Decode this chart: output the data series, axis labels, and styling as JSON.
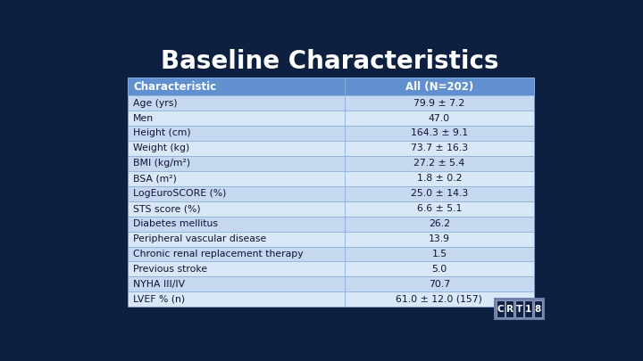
{
  "title": "Baseline Characteristics",
  "title_color": "#FFFFFF",
  "title_fontsize": 20,
  "background_color": "#0d2040",
  "table_bg_even": "#c5d8ef",
  "table_bg_odd": "#d8e8f7",
  "table_bg_header": "#6090d0",
  "table_border_color": "#8ab0e0",
  "header_row": [
    "Characteristic",
    "All (N=202)"
  ],
  "rows": [
    [
      "Age (yrs)",
      "79.9 ± 7.2"
    ],
    [
      "Men",
      "47.0"
    ],
    [
      "Height (cm)",
      "164.3 ± 9.1"
    ],
    [
      "Weight (kg)",
      "73.7 ± 16.3"
    ],
    [
      "BMI (kg/m²)",
      "27.2 ± 5.4"
    ],
    [
      "BSA (m²)",
      "1.8 ± 0.2"
    ],
    [
      "LogEuroSCORE (%)",
      "25.0 ± 14.3"
    ],
    [
      "STS score (%)",
      "6.6 ± 5.1"
    ],
    [
      "Diabetes mellitus",
      "26.2"
    ],
    [
      "Peripheral vascular disease",
      "13.9"
    ],
    [
      "Chronic renal replacement therapy",
      "1.5"
    ],
    [
      "Previous stroke",
      "5.0"
    ],
    [
      "NYHA III/IV",
      "70.7"
    ],
    [
      "LVEF % (n)",
      "61.0 ± 12.0 (157)"
    ]
  ],
  "cell_text_color": "#111133",
  "header_text_color": "#FFFFFF",
  "font_size": 7.8,
  "header_font_size": 8.5,
  "logo_text": "CRT18",
  "logo_bg": "#7080a8",
  "logo_border": "#aabbcc"
}
